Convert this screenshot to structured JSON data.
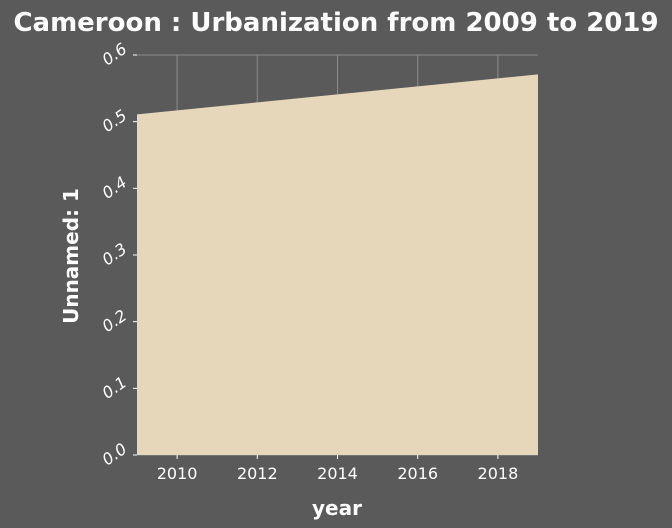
{
  "chart_data": {
    "type": "area",
    "title": "Cameroon : Urbanization from 2009 to 2019",
    "xlabel": "year",
    "ylabel": "Unnamed: 1",
    "x": [
      2009,
      2010,
      2011,
      2012,
      2013,
      2014,
      2015,
      2016,
      2017,
      2018,
      2019
    ],
    "series": [
      {
        "values": [
          0.511,
          0.517,
          0.523,
          0.529,
          0.535,
          0.541,
          0.547,
          0.553,
          0.559,
          0.565,
          0.571
        ]
      }
    ],
    "xlim": [
      2009,
      2019
    ],
    "ylim": [
      0,
      0.6
    ],
    "xticks": [
      2010,
      2012,
      2014,
      2016,
      2018
    ],
    "xtick_labels": [
      "2010",
      "2012",
      "2014",
      "2016",
      "2018"
    ],
    "yticks": [
      0,
      0.1,
      0.2,
      0.3,
      0.4,
      0.5,
      0.6
    ],
    "ytick_labels": [
      "0.0",
      "0.1",
      "0.2",
      "0.3",
      "0.4",
      "0.5",
      "0.6"
    ],
    "grid": true,
    "colors": {
      "background": "#5a5a5a",
      "fill": "#e6d7bb",
      "grid": "#8c8c8c",
      "text": "#ffffff"
    }
  }
}
